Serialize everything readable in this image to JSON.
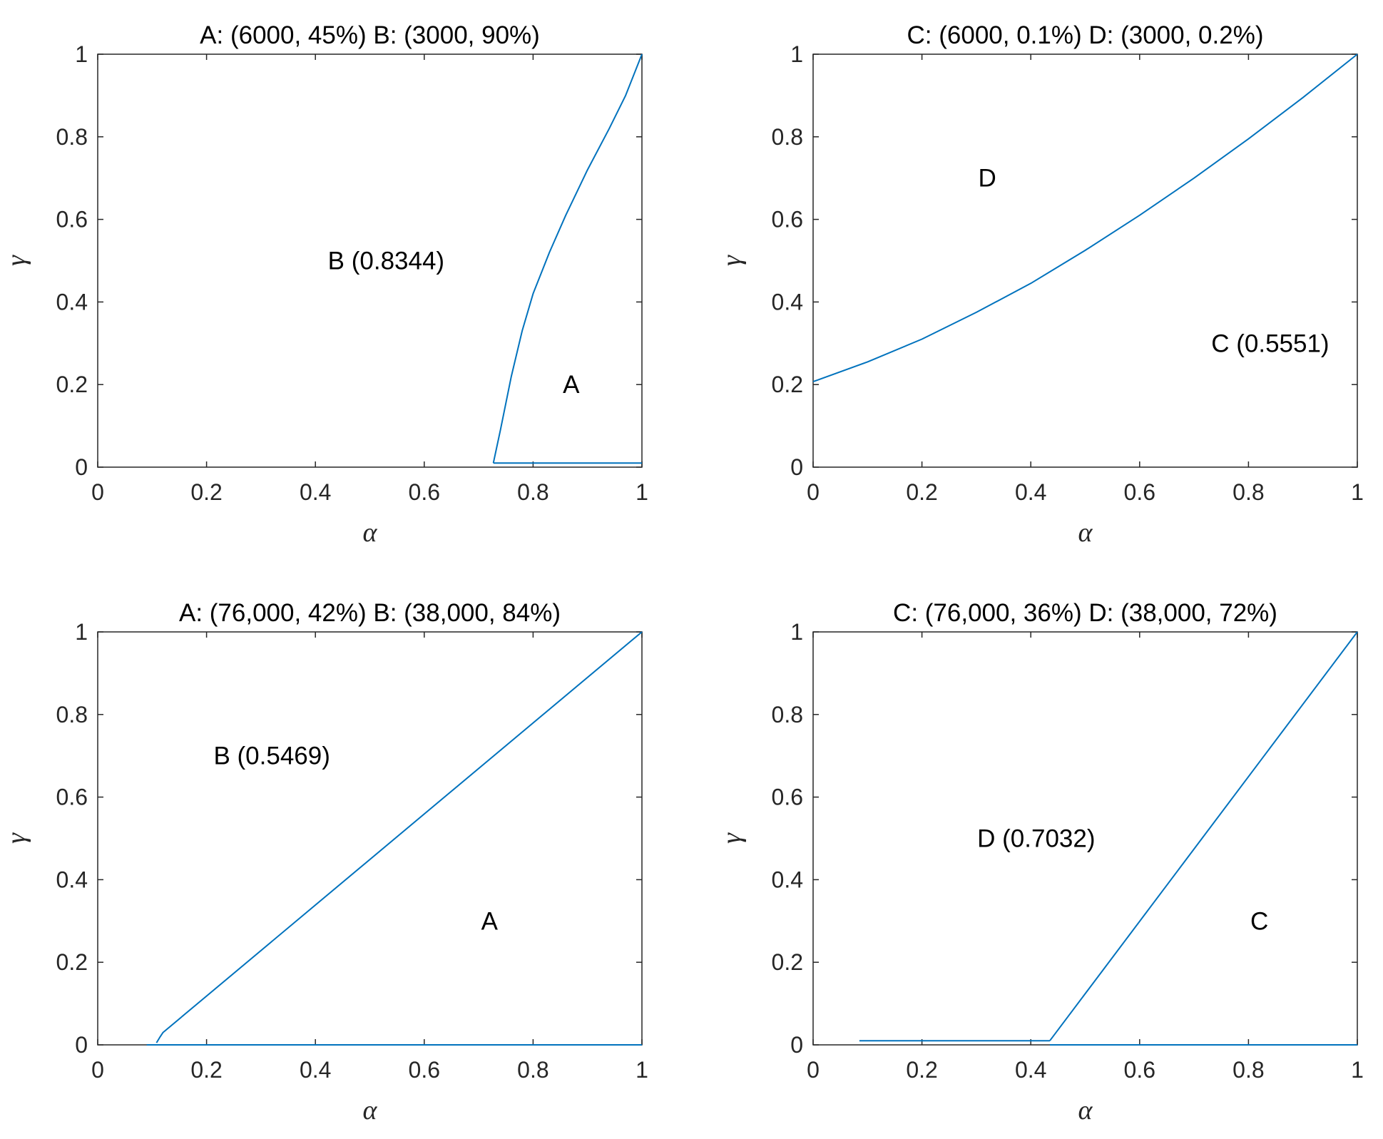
{
  "chart_data": [
    {
      "type": "line",
      "title": "A: (6000, 45%)  B: (3000, 90%)",
      "xlabel": "α",
      "ylabel": "γ",
      "xlim": [
        0,
        1
      ],
      "ylim": [
        0,
        1
      ],
      "xticks": [
        "0",
        "0.2",
        "0.4",
        "0.6",
        "0.8",
        "1"
      ],
      "yticks": [
        "0",
        "0.2",
        "0.4",
        "0.6",
        "0.8",
        "1"
      ],
      "line_color": "#0072BD",
      "series": [
        {
          "name": "boundary",
          "x": [
            0.727,
            0.74,
            0.76,
            0.78,
            0.8,
            0.83,
            0.86,
            0.9,
            0.94,
            0.97,
            1.0
          ],
          "y": [
            0.01,
            0.09,
            0.22,
            0.33,
            0.42,
            0.52,
            0.61,
            0.72,
            0.82,
            0.9,
            1.0
          ]
        },
        {
          "name": "bottom",
          "x": [
            0.727,
            1.0
          ],
          "y": [
            0.01,
            0.01
          ]
        }
      ],
      "annotations": [
        {
          "text": "B (0.8344)",
          "x": 0.53,
          "y": 0.5
        },
        {
          "text": "A",
          "x": 0.87,
          "y": 0.2
        }
      ]
    },
    {
      "type": "line",
      "title": "C: (6000, 0.1%)  D: (3000, 0.2%)",
      "xlabel": "α",
      "ylabel": "γ",
      "xlim": [
        0,
        1
      ],
      "ylim": [
        0,
        1
      ],
      "xticks": [
        "0",
        "0.2",
        "0.4",
        "0.6",
        "0.8",
        "1"
      ],
      "yticks": [
        "0",
        "0.2",
        "0.4",
        "0.6",
        "0.8",
        "1"
      ],
      "line_color": "#0072BD",
      "series": [
        {
          "name": "boundary",
          "x": [
            0,
            0.1,
            0.2,
            0.3,
            0.4,
            0.5,
            0.6,
            0.7,
            0.8,
            0.9,
            1.0
          ],
          "y": [
            0.207,
            0.255,
            0.31,
            0.375,
            0.445,
            0.525,
            0.61,
            0.7,
            0.795,
            0.895,
            1.0
          ]
        }
      ],
      "annotations": [
        {
          "text": "D",
          "x": 0.32,
          "y": 0.7
        },
        {
          "text": "C (0.5551)",
          "x": 0.84,
          "y": 0.3
        }
      ]
    },
    {
      "type": "line",
      "title": "A: (76,000, 42%)  B: (38,000, 84%)",
      "xlabel": "α",
      "ylabel": "γ",
      "xlim": [
        0,
        1
      ],
      "ylim": [
        0,
        1
      ],
      "xticks": [
        "0",
        "0.2",
        "0.4",
        "0.6",
        "0.8",
        "1"
      ],
      "yticks": [
        "0",
        "0.2",
        "0.4",
        "0.6",
        "0.8",
        "1"
      ],
      "line_color": "#0072BD",
      "series": [
        {
          "name": "boundary",
          "x": [
            0.108,
            0.115,
            0.12,
            1.0
          ],
          "y": [
            0.005,
            0.02,
            0.03,
            1.0
          ]
        },
        {
          "name": "bottom",
          "x": [
            0.09,
            1.0
          ],
          "y": [
            0.0,
            0.0
          ]
        }
      ],
      "annotations": [
        {
          "text": "B (0.5469)",
          "x": 0.32,
          "y": 0.7
        },
        {
          "text": "A",
          "x": 0.72,
          "y": 0.3
        }
      ]
    },
    {
      "type": "line",
      "title": "C: (76,000, 36%)  D: (38,000, 72%)",
      "xlabel": "α",
      "ylabel": "γ",
      "xlim": [
        0,
        1
      ],
      "ylim": [
        0,
        1
      ],
      "xticks": [
        "0",
        "0.2",
        "0.4",
        "0.6",
        "0.8",
        "1"
      ],
      "yticks": [
        "0",
        "0.2",
        "0.4",
        "0.6",
        "0.8",
        "1"
      ],
      "line_color": "#0072BD",
      "series": [
        {
          "name": "boundary",
          "x": [
            0.435,
            1.0
          ],
          "y": [
            0.01,
            1.0
          ]
        },
        {
          "name": "bottom",
          "x": [
            0.085,
            0.435
          ],
          "y": [
            0.01,
            0.01
          ]
        },
        {
          "name": "baseline",
          "x": [
            0.435,
            1.0
          ],
          "y": [
            0.0,
            0.0
          ]
        }
      ],
      "annotations": [
        {
          "text": "D (0.7032)",
          "x": 0.41,
          "y": 0.5
        },
        {
          "text": "C",
          "x": 0.82,
          "y": 0.3
        }
      ]
    }
  ]
}
